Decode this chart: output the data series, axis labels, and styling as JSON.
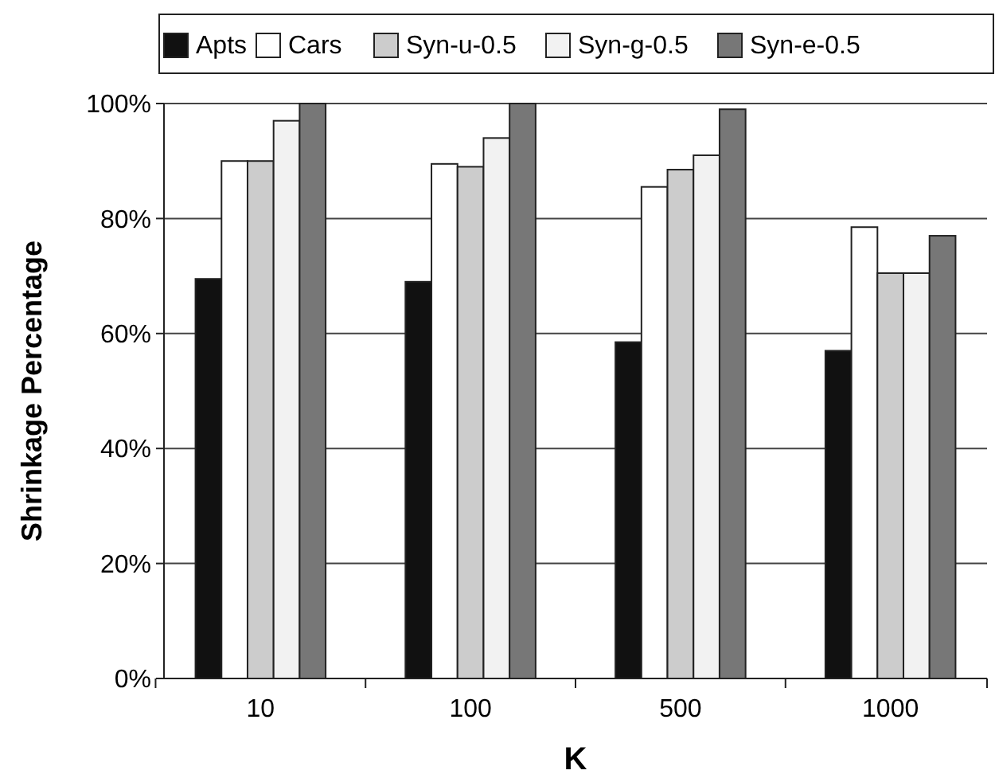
{
  "chart_data": {
    "type": "bar",
    "xlabel": "K",
    "ylabel": "Shrinkage Percentage",
    "categories": [
      "10",
      "100",
      "500",
      "1000"
    ],
    "series": [
      {
        "name": "Apts",
        "color": "#111111",
        "values": [
          69.5,
          69,
          58.5,
          57
        ]
      },
      {
        "name": "Cars",
        "color": "#ffffff",
        "values": [
          90,
          89.5,
          85.5,
          78.5
        ]
      },
      {
        "name": "Syn-u-0.5",
        "color": "#cccccc",
        "values": [
          90,
          89,
          88.5,
          70.5
        ]
      },
      {
        "name": "Syn-g-0.5",
        "color": "#f2f2f2",
        "values": [
          97,
          94,
          91,
          70.5
        ]
      },
      {
        "name": "Syn-e-0.5",
        "color": "#777777",
        "values": [
          100,
          100,
          99,
          77
        ]
      }
    ],
    "ylim": [
      0,
      100
    ],
    "yticks": [
      {
        "value": 0,
        "label": "0%"
      },
      {
        "value": 20,
        "label": "20%"
      },
      {
        "value": 40,
        "label": "40%"
      },
      {
        "value": 60,
        "label": "60%"
      },
      {
        "value": 80,
        "label": "80%"
      },
      {
        "value": 100,
        "label": "100%"
      }
    ],
    "grid": "y",
    "legend": "top"
  }
}
